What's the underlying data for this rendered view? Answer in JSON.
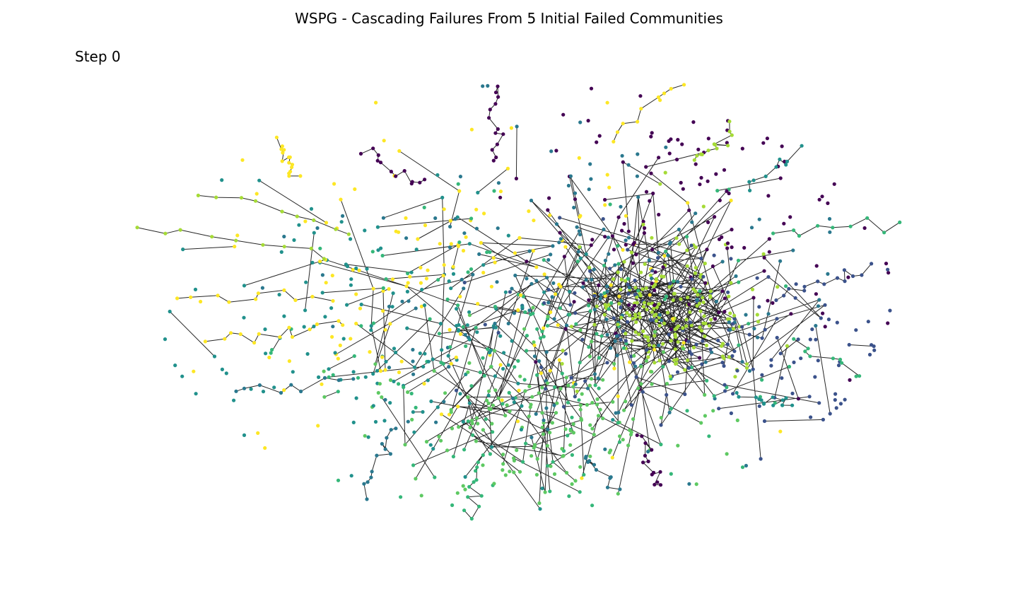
{
  "figure": {
    "title": "WSPG - Cascading Failures From 5 Initial Failed Communities",
    "step_label": "Step 0"
  },
  "network": {
    "edge_color": "#000000",
    "community_palette": [
      "#440154",
      "#3b528b",
      "#21918c",
      "#5ec962",
      "#a5db36",
      "#fde725",
      "#2a788e",
      "#35b779"
    ]
  }
}
